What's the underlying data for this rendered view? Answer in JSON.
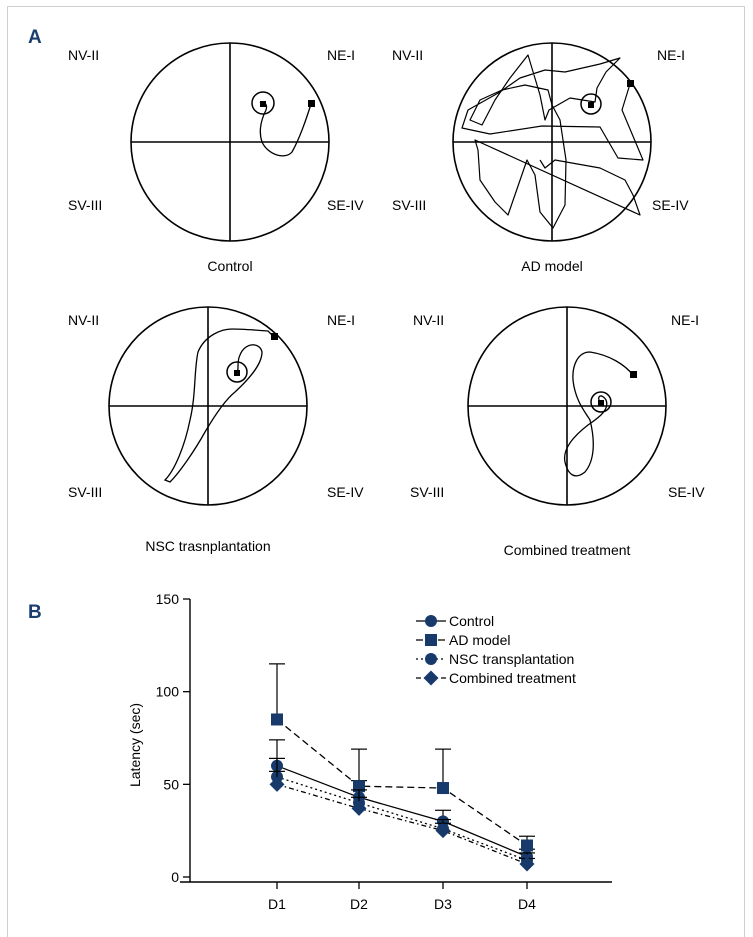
{
  "panel_a": {
    "label": "A",
    "mazes": [
      {
        "caption": "Control",
        "quadrants": {
          "nw": "NV-II",
          "ne": "NE-I",
          "sw": "SV-III",
          "se": "SE-IV"
        }
      },
      {
        "caption": "AD model",
        "quadrants": {
          "nw": "NV-II",
          "ne": "NE-I",
          "sw": "SV-III",
          "se": "SE-IV"
        }
      },
      {
        "caption": "NSC trasnplantation",
        "quadrants": {
          "nw": "NV-II",
          "ne": "NE-I",
          "sw": "SV-III",
          "se": "SE-IV"
        }
      },
      {
        "caption": "Combined treatment",
        "quadrants": {
          "nw": "NV-II",
          "ne": "NE-I",
          "sw": "SV-III",
          "se": "SE-IV"
        }
      }
    ]
  },
  "panel_b": {
    "label": "B"
  },
  "colors": {
    "series": "#173a6b",
    "axis": "#000000"
  },
  "chart_data": {
    "type": "line",
    "categories": [
      "D1",
      "D2",
      "D3",
      "D4"
    ],
    "ylabel": "Latency (sec)",
    "xlabel": "",
    "ylim": [
      0,
      150
    ],
    "yticks": [
      0,
      50,
      100,
      150
    ],
    "legend_position": "top-right",
    "series": [
      {
        "name": "Control",
        "marker": "circle",
        "dash": "solid",
        "values": [
          60,
          43,
          30,
          11
        ],
        "error": [
          14,
          9,
          6,
          4
        ]
      },
      {
        "name": "AD model",
        "marker": "square",
        "dash": "dashed",
        "values": [
          85,
          49,
          48,
          17
        ],
        "error": [
          30,
          20,
          21,
          5
        ]
      },
      {
        "name": "NSC transplantation",
        "marker": "circle",
        "dash": "dotted",
        "values": [
          54,
          40,
          26,
          9
        ],
        "error": [
          10,
          7,
          5,
          4
        ]
      },
      {
        "name": "Combined treatment",
        "marker": "diamond",
        "dash": "dashdot",
        "values": [
          50,
          37,
          25,
          7
        ],
        "error": [
          7,
          6,
          4,
          3
        ]
      }
    ]
  }
}
